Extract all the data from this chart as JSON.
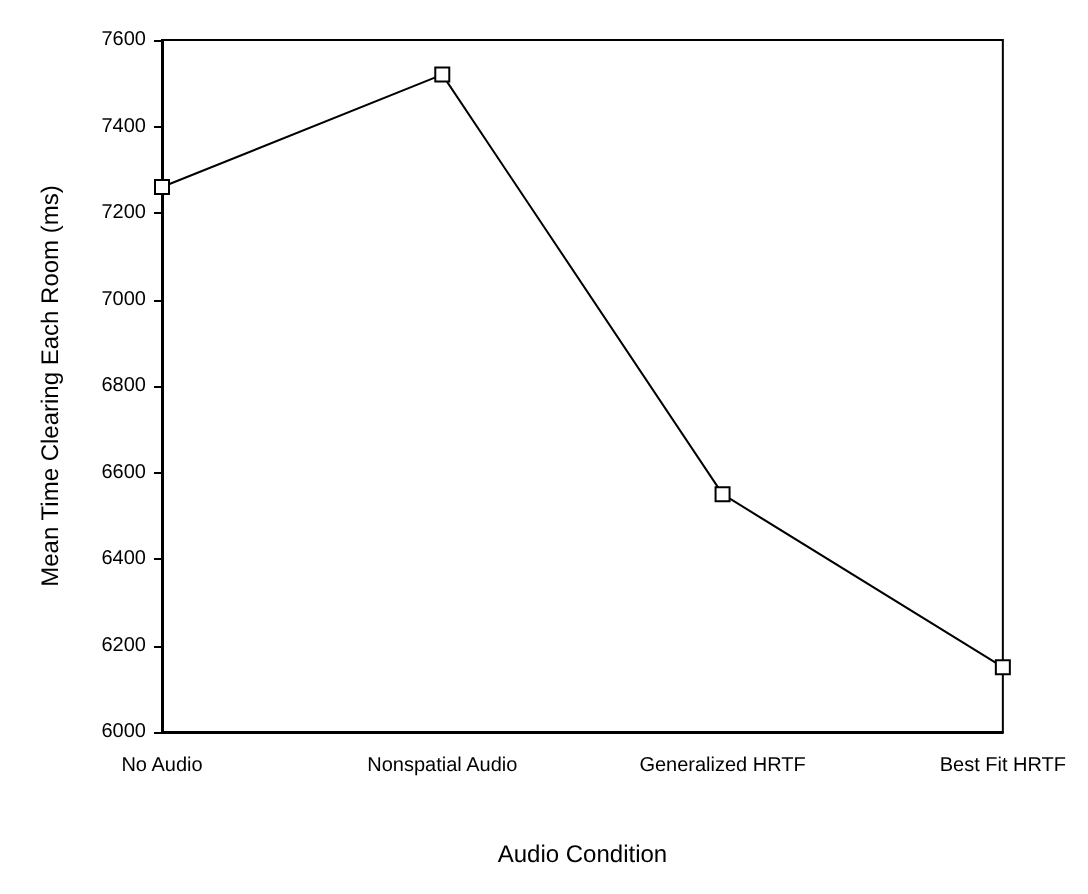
{
  "chart_data": {
    "type": "line",
    "xlabel": "Audio Condition",
    "ylabel": "Mean Time Clearing Each Room (ms)",
    "categories": [
      "No Audio",
      "Nonspatial Audio",
      "Generalized HRTF",
      "Best Fit HRTF"
    ],
    "series": [
      {
        "color": "#000000",
        "values": [
          7260,
          7520,
          6550,
          6150
        ]
      }
    ],
    "ylim": [
      6000,
      7600
    ],
    "yticks": [
      6000,
      6200,
      6400,
      6600,
      6800,
      7000,
      7200,
      7400,
      7600
    ],
    "marker": "square",
    "line_style": "solid"
  }
}
